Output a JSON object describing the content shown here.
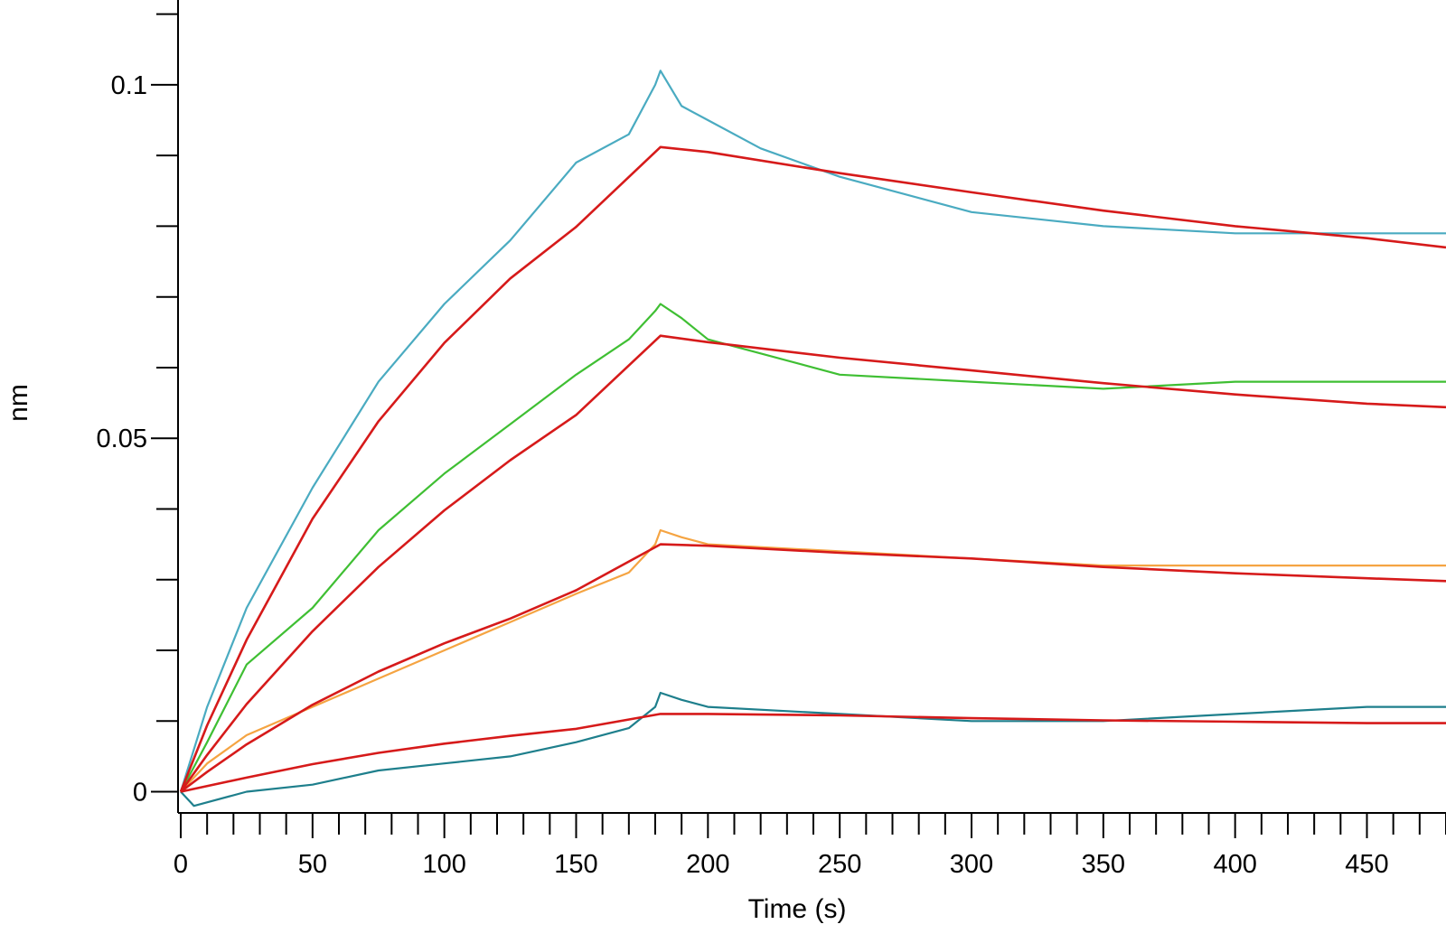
{
  "chart_data": {
    "type": "line",
    "title": "",
    "xlabel": "Time (s)",
    "ylabel": "nm",
    "xlim": [
      0,
      480
    ],
    "ylim": [
      -0.003,
      0.112
    ],
    "x_ticks": [
      0,
      50,
      100,
      150,
      200,
      250,
      300,
      350,
      400,
      450
    ],
    "x_tick_labels": [
      "0",
      "50",
      "100",
      "150",
      "200",
      "250",
      "300",
      "350",
      "400",
      "450"
    ],
    "y_ticks": [
      0,
      0.05,
      0.1
    ],
    "y_tick_labels": [
      "0",
      "0.05",
      "0.1"
    ],
    "grid": false,
    "legend": "none",
    "series": [
      {
        "color": "#4aabc1",
        "kind": "measured",
        "x": [
          0,
          10,
          25,
          50,
          75,
          100,
          125,
          150,
          170,
          180,
          182,
          190,
          200,
          220,
          250,
          300,
          350,
          400,
          450,
          480
        ],
        "values": [
          0,
          0.012,
          0.026,
          0.043,
          0.058,
          0.069,
          0.078,
          0.089,
          0.093,
          0.1,
          0.102,
          0.097,
          0.095,
          0.091,
          0.087,
          0.082,
          0.08,
          0.079,
          0.079,
          0.079
        ]
      },
      {
        "color": "#3fbf33",
        "kind": "measured",
        "x": [
          0,
          10,
          25,
          50,
          75,
          100,
          125,
          150,
          170,
          180,
          182,
          190,
          200,
          250,
          300,
          350,
          400,
          450,
          480
        ],
        "values": [
          0,
          0.007,
          0.018,
          0.026,
          0.037,
          0.045,
          0.052,
          0.059,
          0.064,
          0.068,
          0.069,
          0.067,
          0.064,
          0.059,
          0.058,
          0.057,
          0.058,
          0.058,
          0.058
        ]
      },
      {
        "color": "#f5a442",
        "kind": "measured",
        "x": [
          0,
          10,
          25,
          50,
          75,
          100,
          125,
          150,
          170,
          180,
          182,
          190,
          200,
          250,
          300,
          350,
          400,
          450,
          480
        ],
        "values": [
          0,
          0.004,
          0.008,
          0.012,
          0.016,
          0.02,
          0.024,
          0.028,
          0.031,
          0.035,
          0.037,
          0.036,
          0.035,
          0.034,
          0.033,
          0.032,
          0.032,
          0.032,
          0.032
        ]
      },
      {
        "color": "#1e7f8c",
        "kind": "measured",
        "x": [
          0,
          5,
          25,
          50,
          75,
          100,
          125,
          150,
          170,
          180,
          182,
          190,
          200,
          250,
          300,
          350,
          400,
          450,
          480
        ],
        "values": [
          0,
          -0.002,
          0,
          0.001,
          0.003,
          0.004,
          0.005,
          0.007,
          0.009,
          0.012,
          0.014,
          0.013,
          0.012,
          0.011,
          0.01,
          0.01,
          0.011,
          0.012,
          0.012
        ]
      },
      {
        "color": "#d61a1a",
        "kind": "fit",
        "x": [
          0,
          10,
          25,
          50,
          75,
          100,
          125,
          150,
          182,
          200,
          250,
          300,
          350,
          400,
          450,
          480
        ],
        "values": [
          0,
          0.0094,
          0.0215,
          0.0386,
          0.0524,
          0.0635,
          0.0726,
          0.0799,
          0.0912,
          0.0905,
          0.0875,
          0.0848,
          0.0822,
          0.08,
          0.0783,
          0.077
        ]
      },
      {
        "color": "#d61a1a",
        "kind": "fit",
        "x": [
          0,
          10,
          25,
          50,
          75,
          100,
          125,
          150,
          182,
          200,
          250,
          300,
          350,
          400,
          450,
          480
        ],
        "values": [
          0,
          0.0052,
          0.0124,
          0.0227,
          0.0318,
          0.0398,
          0.0469,
          0.0533,
          0.0645,
          0.0636,
          0.0614,
          0.0596,
          0.0578,
          0.0562,
          0.0549,
          0.0544
        ]
      },
      {
        "color": "#d61a1a",
        "kind": "fit",
        "x": [
          0,
          10,
          25,
          50,
          75,
          100,
          125,
          150,
          182,
          200,
          250,
          300,
          350,
          400,
          450,
          480
        ],
        "values": [
          0,
          0.0028,
          0.0067,
          0.0123,
          0.017,
          0.021,
          0.0245,
          0.0285,
          0.035,
          0.0348,
          0.0338,
          0.033,
          0.0318,
          0.0309,
          0.0302,
          0.0298
        ]
      },
      {
        "color": "#d61a1a",
        "kind": "fit",
        "x": [
          0,
          25,
          50,
          75,
          100,
          125,
          150,
          182,
          200,
          250,
          300,
          350,
          400,
          450,
          480
        ],
        "values": [
          0,
          0.002,
          0.0039,
          0.0055,
          0.0068,
          0.0079,
          0.0089,
          0.011,
          0.011,
          0.0108,
          0.0104,
          0.0101,
          0.0099,
          0.0097,
          0.0097
        ]
      }
    ]
  }
}
